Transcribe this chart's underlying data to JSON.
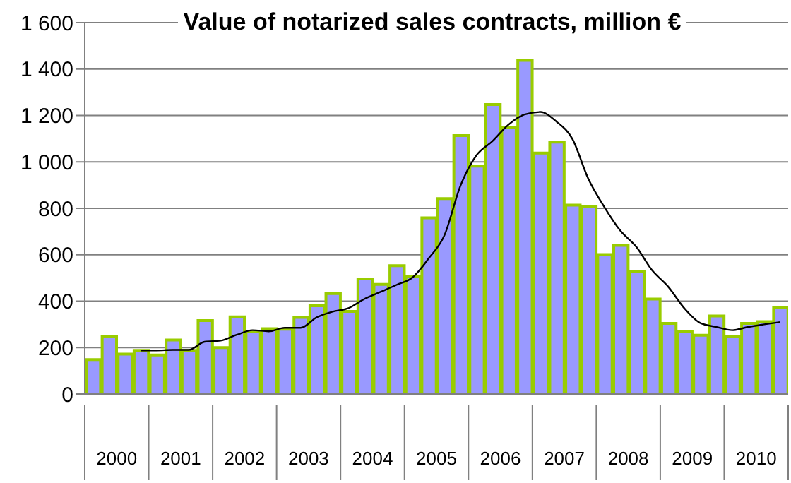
{
  "chart_data": {
    "type": "bar",
    "title": "Value of notarized sales contracts, million €",
    "x": [
      2000.125,
      2000.375,
      2000.625,
      2000.875,
      2001.125,
      2001.375,
      2001.625,
      2001.875,
      2002.125,
      2002.375,
      2002.625,
      2002.875,
      2003.125,
      2003.375,
      2003.625,
      2003.875,
      2004.125,
      2004.375,
      2004.625,
      2004.875,
      2005.125,
      2005.375,
      2005.625,
      2005.875,
      2006.125,
      2006.375,
      2006.625,
      2006.875,
      2007.125,
      2007.375,
      2007.625,
      2007.875,
      2008.125,
      2008.375,
      2008.625,
      2008.875,
      2009.125,
      2009.375,
      2009.625,
      2009.875,
      2010.125,
      2010.375,
      2010.625,
      2010.875
    ],
    "xlim": [
      2000,
      2011
    ],
    "xticks": [
      {
        "value": 2000,
        "label": null
      },
      {
        "value": 2000.5,
        "label": "2000"
      },
      {
        "value": 2001,
        "label": null
      },
      {
        "value": 2001.5,
        "label": "2001"
      },
      {
        "value": 2002,
        "label": null
      },
      {
        "value": 2002.5,
        "label": "2002"
      },
      {
        "value": 2003,
        "label": null
      },
      {
        "value": 2003.5,
        "label": "2003"
      },
      {
        "value": 2004,
        "label": null
      },
      {
        "value": 2004.5,
        "label": "2004"
      },
      {
        "value": 2005,
        "label": null
      },
      {
        "value": 2005.5,
        "label": "2005"
      },
      {
        "value": 2006,
        "label": null
      },
      {
        "value": 2006.5,
        "label": "2006"
      },
      {
        "value": 2007,
        "label": null
      },
      {
        "value": 2007.5,
        "label": "2007"
      },
      {
        "value": 2008,
        "label": null
      },
      {
        "value": 2008.5,
        "label": "2008"
      },
      {
        "value": 2009,
        "label": null
      },
      {
        "value": 2009.5,
        "label": "2009"
      },
      {
        "value": 2010,
        "label": null
      },
      {
        "value": 2010.5,
        "label": "2010"
      },
      {
        "value": 2011,
        "label": null
      }
    ],
    "series": [
      {
        "color": "#9999ff",
        "values": [
          148,
          249,
          172,
          188,
          168,
          233,
          188,
          316,
          200,
          332,
          269,
          281,
          279,
          330,
          380,
          433,
          356,
          496,
          472,
          553,
          508,
          759,
          842,
          1113,
          982,
          1247,
          1150,
          1437,
          1038,
          1085,
          814,
          806,
          601,
          640,
          526,
          409,
          304,
          269,
          253,
          336,
          249,
          304,
          312,
          372
        ]
      },
      {
        "type": "line",
        "color": "#000000",
        "values": [
          null,
          null,
          null,
          188,
          188,
          190,
          190,
          225,
          230,
          255,
          275,
          270,
          285,
          285,
          330,
          355,
          370,
          410,
          440,
          470,
          502,
          583,
          684,
          897,
          1028,
          1089,
          1160,
          1204,
          1215,
          1174,
          1099,
          927,
          806,
          704,
          634,
          532,
          462,
          370,
          306,
          289,
          275,
          289,
          300,
          310
        ]
      }
    ],
    "ylim": [
      0,
      1600
    ],
    "yticks": [
      0,
      {
        "value": 200,
        "label": "200"
      },
      {
        "value": 400,
        "label": "400"
      },
      {
        "value": 600,
        "label": "600"
      },
      {
        "value": 800,
        "label": "800"
      },
      {
        "value": 1000,
        "label": "1 000"
      },
      {
        "value": 1200,
        "label": "1 200"
      },
      {
        "value": 1400,
        "label": "1 400"
      },
      {
        "value": 1600,
        "label": "1 600"
      }
    ],
    "grid": "y",
    "marker": "none",
    "line_style": "solid",
    "legend": false
  }
}
